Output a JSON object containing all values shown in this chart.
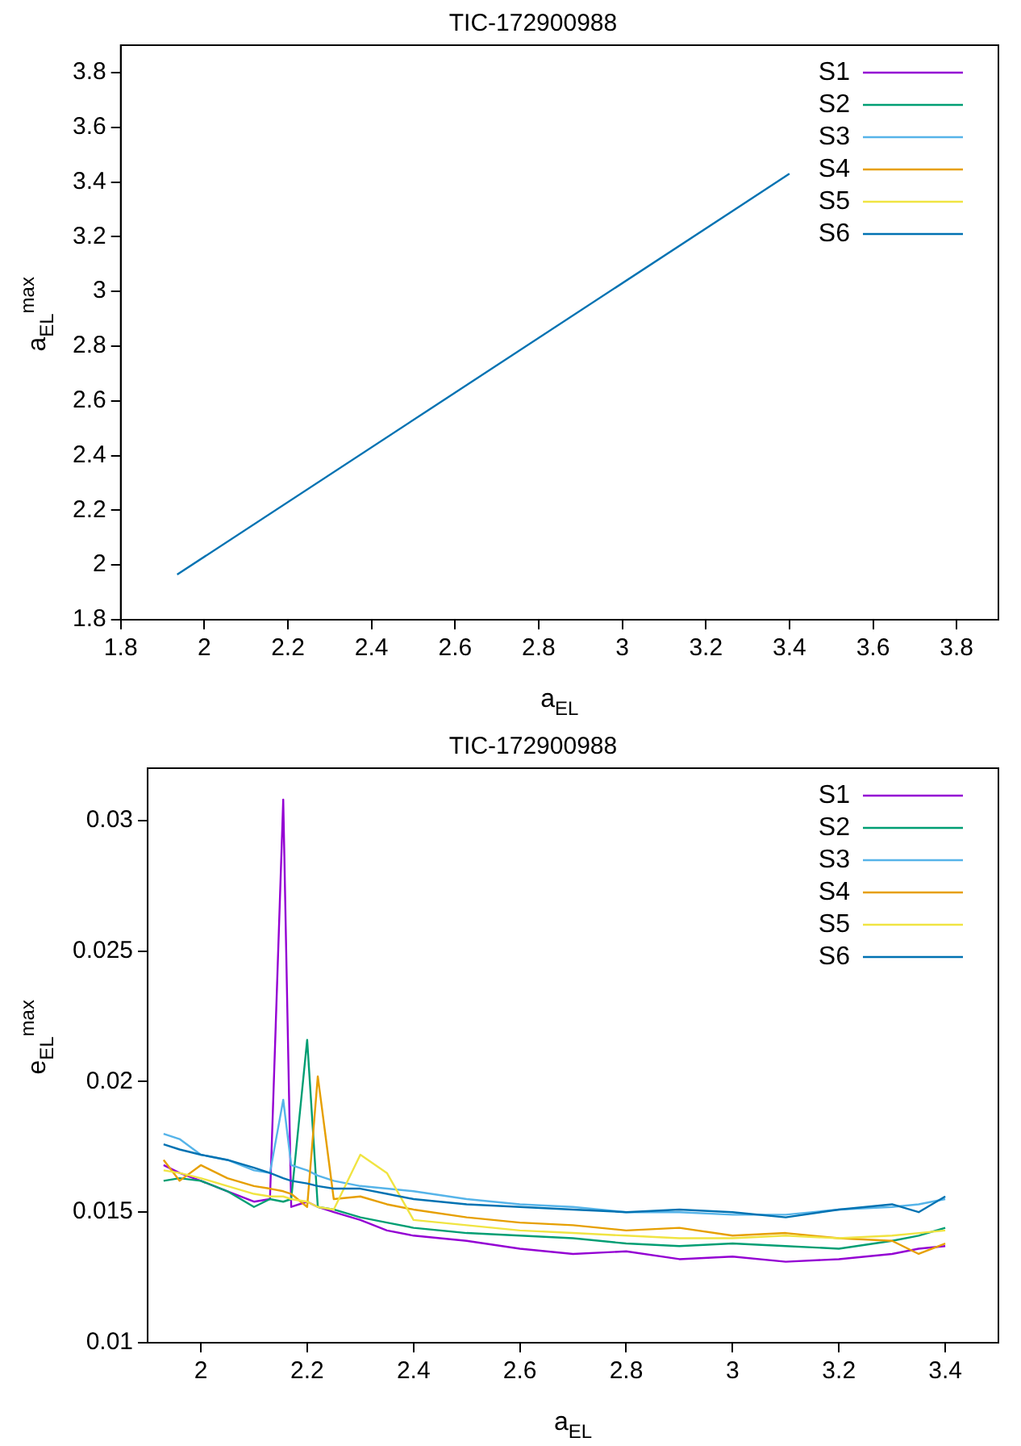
{
  "chart_data": [
    {
      "type": "line",
      "title": "TIC-172900988",
      "xlabel": "a$_{EL}$",
      "ylabel": "a$_{EL}$$^{max}$",
      "xlim": [
        1.8,
        3.9
      ],
      "ylim": [
        1.8,
        3.9
      ],
      "xticks": [
        1.8,
        2,
        2.2,
        2.4,
        2.6,
        2.8,
        3,
        3.2,
        3.4,
        3.6,
        3.8
      ],
      "yticks": [
        1.8,
        2,
        2.2,
        2.4,
        2.6,
        2.8,
        3,
        3.2,
        3.4,
        3.6,
        3.8
      ],
      "grid": false,
      "legend": "top right",
      "marker": "none",
      "line_style": "solid",
      "x": [
        1.935,
        3.4
      ],
      "series": [
        {
          "name": "S1",
          "color": "#9400d3",
          "values": [
            null,
            null
          ]
        },
        {
          "name": "S2",
          "color": "#009e73",
          "values": [
            null,
            null
          ]
        },
        {
          "name": "S3",
          "color": "#56b4e9",
          "values": [
            null,
            null
          ]
        },
        {
          "name": "S4",
          "color": "#e69f00",
          "values": [
            null,
            null
          ]
        },
        {
          "name": "S5",
          "color": "#f0e442",
          "values": [
            null,
            null
          ]
        },
        {
          "name": "S6",
          "color": "#0072b2",
          "values": [
            1.965,
            3.43
          ]
        }
      ]
    },
    {
      "type": "line",
      "title": "TIC-172900988",
      "xlabel": "a$_{EL}$",
      "ylabel": "e$_{EL}$$^{max}$",
      "xlim": [
        1.9,
        3.5
      ],
      "ylim": [
        0.01,
        0.032
      ],
      "xticks": [
        2,
        2.2,
        2.4,
        2.6,
        2.8,
        3,
        3.2,
        3.4
      ],
      "yticks": [
        0.01,
        0.015,
        0.02,
        0.025,
        0.03
      ],
      "grid": false,
      "legend": "top right",
      "marker": "none",
      "line_style": "solid",
      "x": [
        1.93,
        1.96,
        2.0,
        2.05,
        2.1,
        2.13,
        2.155,
        2.17,
        2.2,
        2.22,
        2.25,
        2.3,
        2.35,
        2.4,
        2.5,
        2.6,
        2.7,
        2.8,
        2.9,
        3.0,
        3.1,
        3.2,
        3.3,
        3.35,
        3.4
      ],
      "series": [
        {
          "name": "S1",
          "color": "#9400d3",
          "values": [
            0.0168,
            0.0165,
            0.0162,
            0.0158,
            0.0154,
            0.0155,
            0.0308,
            0.0152,
            0.0154,
            0.0152,
            0.015,
            0.0147,
            0.0143,
            0.0141,
            0.0139,
            0.0136,
            0.0134,
            0.0135,
            0.0132,
            0.0133,
            0.0131,
            0.0132,
            0.0134,
            0.0136,
            0.0137
          ]
        },
        {
          "name": "S2",
          "color": "#009e73",
          "values": [
            0.0162,
            0.0163,
            0.0162,
            0.0158,
            0.0152,
            0.0155,
            0.0154,
            0.0155,
            0.0216,
            0.0152,
            0.0151,
            0.0148,
            0.0146,
            0.0144,
            0.0142,
            0.0141,
            0.014,
            0.0138,
            0.0137,
            0.0138,
            0.0137,
            0.0136,
            0.0139,
            0.0141,
            0.0144
          ]
        },
        {
          "name": "S3",
          "color": "#56b4e9",
          "values": [
            0.018,
            0.0178,
            0.0172,
            0.017,
            0.0166,
            0.0165,
            0.0193,
            0.0168,
            0.0166,
            0.0164,
            0.0162,
            0.016,
            0.0159,
            0.0158,
            0.0155,
            0.0153,
            0.0152,
            0.015,
            0.015,
            0.0149,
            0.0149,
            0.0151,
            0.0152,
            0.0153,
            0.0155
          ]
        },
        {
          "name": "S4",
          "color": "#e69f00",
          "values": [
            0.017,
            0.0162,
            0.0168,
            0.0163,
            0.016,
            0.0159,
            0.0158,
            0.0157,
            0.0152,
            0.0202,
            0.0155,
            0.0156,
            0.0153,
            0.0151,
            0.0148,
            0.0146,
            0.0145,
            0.0143,
            0.0144,
            0.0141,
            0.0142,
            0.014,
            0.0139,
            0.0134,
            0.0138
          ]
        },
        {
          "name": "S5",
          "color": "#f0e442",
          "values": [
            0.0166,
            0.0165,
            0.0163,
            0.016,
            0.0157,
            0.0156,
            0.0156,
            0.0155,
            0.0154,
            0.0152,
            0.0151,
            0.0172,
            0.0165,
            0.0147,
            0.0145,
            0.0143,
            0.0142,
            0.0141,
            0.014,
            0.014,
            0.0141,
            0.014,
            0.0141,
            0.0142,
            0.0143
          ]
        },
        {
          "name": "S6",
          "color": "#0072b2",
          "values": [
            0.0176,
            0.0174,
            0.0172,
            0.017,
            0.0167,
            0.0165,
            0.0163,
            0.0162,
            0.0161,
            0.016,
            0.0159,
            0.0159,
            0.0157,
            0.0155,
            0.0153,
            0.0152,
            0.0151,
            0.015,
            0.0151,
            0.015,
            0.0148,
            0.0151,
            0.0153,
            0.015,
            0.0156
          ]
        }
      ]
    }
  ]
}
